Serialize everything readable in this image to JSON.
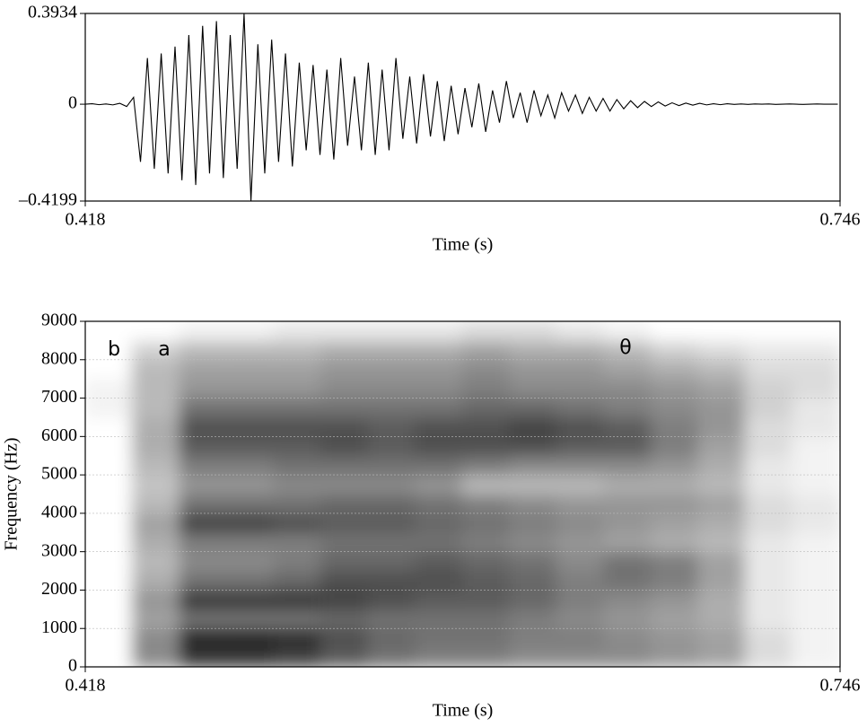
{
  "chart_data": [
    {
      "type": "line",
      "xlabel": "Time (s)",
      "xlim": [
        0.418,
        0.746
      ],
      "xticks": [
        0.418,
        0.746
      ],
      "ylim": [
        -0.4199,
        0.3934
      ],
      "yticks": [
        {
          "value": 0.3934,
          "label": "0.3934"
        },
        0,
        {
          "value": -0.4199,
          "label": "–0.4199"
        }
      ],
      "color": "#000000",
      "x": [
        0.418,
        0.421,
        0.424,
        0.427,
        0.43,
        0.433,
        0.436,
        0.439,
        0.442,
        0.445,
        0.448,
        0.451,
        0.454,
        0.457,
        0.46,
        0.463,
        0.466,
        0.469,
        0.472,
        0.475,
        0.478,
        0.481,
        0.484,
        0.487,
        0.49,
        0.493,
        0.496,
        0.499,
        0.502,
        0.505,
        0.508,
        0.511,
        0.514,
        0.517,
        0.52,
        0.523,
        0.526,
        0.529,
        0.532,
        0.535,
        0.538,
        0.541,
        0.544,
        0.547,
        0.55,
        0.553,
        0.556,
        0.559,
        0.562,
        0.565,
        0.568,
        0.571,
        0.574,
        0.577,
        0.58,
        0.583,
        0.586,
        0.589,
        0.592,
        0.595,
        0.598,
        0.601,
        0.604,
        0.607,
        0.61,
        0.613,
        0.616,
        0.619,
        0.622,
        0.625,
        0.628,
        0.631,
        0.634,
        0.637,
        0.64,
        0.643,
        0.646,
        0.649,
        0.652,
        0.655,
        0.658,
        0.661,
        0.664,
        0.667,
        0.67,
        0.673,
        0.676,
        0.679,
        0.682,
        0.685,
        0.688,
        0.691,
        0.694,
        0.697,
        0.7,
        0.703,
        0.706,
        0.709,
        0.712,
        0.715,
        0.718,
        0.721,
        0.724,
        0.727,
        0.73,
        0.733,
        0.736,
        0.739,
        0.742,
        0.745
      ],
      "values": [
        0,
        0.002,
        -0.002,
        0.001,
        -0.003,
        0.004,
        -0.01,
        0.03,
        -0.25,
        0.2,
        -0.28,
        0.22,
        -0.3,
        0.25,
        -0.33,
        0.3,
        -0.35,
        0.34,
        -0.3,
        0.36,
        -0.32,
        0.3,
        -0.28,
        0.3934,
        -0.4199,
        0.26,
        -0.3,
        0.28,
        -0.25,
        0.22,
        -0.27,
        0.18,
        -0.2,
        0.17,
        -0.22,
        0.15,
        -0.24,
        0.2,
        -0.18,
        0.12,
        -0.2,
        0.18,
        -0.22,
        0.15,
        -0.2,
        0.2,
        -0.15,
        0.12,
        -0.17,
        0.13,
        -0.14,
        0.1,
        -0.16,
        0.08,
        -0.13,
        0.07,
        -0.1,
        0.09,
        -0.12,
        0.06,
        -0.08,
        0.1,
        -0.06,
        0.05,
        -0.08,
        0.06,
        -0.05,
        0.04,
        -0.06,
        0.05,
        -0.03,
        0.04,
        -0.04,
        0.03,
        -0.03,
        0.025,
        -0.03,
        0.02,
        -0.02,
        0.015,
        -0.015,
        0.012,
        -0.01,
        0.01,
        -0.008,
        0.006,
        -0.006,
        0.005,
        -0.004,
        0.004,
        -0.003,
        0.002,
        -0.002,
        0.002,
        -0.001,
        0.001,
        -0.001,
        0.001,
        0,
        0.001,
        -0.001,
        0,
        0.001,
        0,
        -0.001,
        0,
        0.001,
        0,
        0,
        0
      ]
    },
    {
      "type": "spectrogram",
      "xlabel": "Time (s)",
      "ylabel": "Frequency (Hz)",
      "xlim": [
        0.418,
        0.746
      ],
      "xticks": [
        0.418,
        0.746
      ],
      "ylim": [
        0,
        9000
      ],
      "yticks": [
        0,
        1000,
        2000,
        3000,
        4000,
        5000,
        6000,
        7000,
        8000,
        9000
      ],
      "grid": true,
      "annotations": [
        {
          "text": "b",
          "x": 0.4305,
          "y": 8250
        },
        {
          "text": "a",
          "x": 0.4523,
          "y": 8250
        },
        {
          "text": "θ",
          "x": 0.6528,
          "y": 8300
        }
      ],
      "z": [
        [
          0,
          0.5,
          0.85,
          0.85,
          0.8,
          0.7,
          0.6,
          0.55,
          0.55,
          0.5,
          0.5,
          0.5,
          0.45,
          0.4,
          0.15,
          0.05
        ],
        [
          0,
          0.5,
          0.95,
          0.95,
          0.9,
          0.75,
          0.65,
          0.6,
          0.6,
          0.55,
          0.55,
          0.5,
          0.45,
          0.4,
          0.15,
          0.05
        ],
        [
          0,
          0.4,
          0.6,
          0.6,
          0.6,
          0.65,
          0.6,
          0.6,
          0.6,
          0.55,
          0.5,
          0.45,
          0.4,
          0.35,
          0.1,
          0.05
        ],
        [
          0,
          0.45,
          0.85,
          0.85,
          0.85,
          0.8,
          0.75,
          0.7,
          0.7,
          0.65,
          0.55,
          0.5,
          0.45,
          0.35,
          0.1,
          0.05
        ],
        [
          0,
          0.35,
          0.6,
          0.6,
          0.65,
          0.75,
          0.75,
          0.75,
          0.7,
          0.65,
          0.55,
          0.6,
          0.55,
          0.4,
          0.1,
          0.05
        ],
        [
          0,
          0.3,
          0.5,
          0.5,
          0.55,
          0.65,
          0.65,
          0.7,
          0.65,
          0.6,
          0.5,
          0.6,
          0.55,
          0.4,
          0.1,
          0.05
        ],
        [
          0,
          0.35,
          0.55,
          0.55,
          0.55,
          0.6,
          0.6,
          0.6,
          0.55,
          0.5,
          0.45,
          0.4,
          0.35,
          0.3,
          0.1,
          0.05
        ],
        [
          0,
          0.4,
          0.8,
          0.8,
          0.75,
          0.7,
          0.7,
          0.65,
          0.6,
          0.55,
          0.5,
          0.45,
          0.4,
          0.35,
          0.15,
          0.1
        ],
        [
          0,
          0.3,
          0.6,
          0.6,
          0.6,
          0.65,
          0.65,
          0.6,
          0.55,
          0.5,
          0.45,
          0.45,
          0.45,
          0.4,
          0.15,
          0.1
        ],
        [
          0,
          0.25,
          0.45,
          0.45,
          0.5,
          0.5,
          0.5,
          0.45,
          0.3,
          0.3,
          0.3,
          0.35,
          0.35,
          0.3,
          0.1,
          0.05
        ],
        [
          0,
          0.3,
          0.55,
          0.55,
          0.6,
          0.6,
          0.6,
          0.6,
          0.55,
          0.5,
          0.5,
          0.5,
          0.45,
          0.35,
          0.1,
          0.05
        ],
        [
          0,
          0.35,
          0.7,
          0.7,
          0.7,
          0.75,
          0.7,
          0.75,
          0.75,
          0.75,
          0.7,
          0.7,
          0.55,
          0.4,
          0.15,
          0.05
        ],
        [
          0,
          0.35,
          0.75,
          0.75,
          0.75,
          0.75,
          0.7,
          0.75,
          0.75,
          0.8,
          0.75,
          0.7,
          0.55,
          0.45,
          0.15,
          0.1
        ],
        [
          0.05,
          0.3,
          0.6,
          0.6,
          0.6,
          0.6,
          0.6,
          0.6,
          0.65,
          0.65,
          0.6,
          0.55,
          0.5,
          0.45,
          0.2,
          0.1
        ],
        [
          0.05,
          0.3,
          0.45,
          0.45,
          0.45,
          0.5,
          0.5,
          0.5,
          0.55,
          0.5,
          0.5,
          0.5,
          0.45,
          0.4,
          0.2,
          0.15
        ],
        [
          0,
          0.3,
          0.4,
          0.4,
          0.4,
          0.45,
          0.45,
          0.45,
          0.5,
          0.45,
          0.45,
          0.4,
          0.35,
          0.3,
          0.15,
          0.15
        ],
        [
          0,
          0.2,
          0.3,
          0.3,
          0.3,
          0.35,
          0.35,
          0.35,
          0.4,
          0.35,
          0.35,
          0.3,
          0.2,
          0.15,
          0.1,
          0.1
        ],
        [
          0,
          0,
          0.05,
          0.05,
          0.1,
          0.1,
          0.1,
          0.1,
          0.15,
          0.15,
          0.1,
          0.05,
          0,
          0,
          0,
          0
        ]
      ]
    }
  ]
}
